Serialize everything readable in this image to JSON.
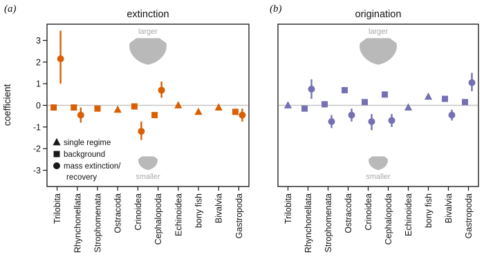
{
  "figure": {
    "panel_a_label": "(a)",
    "panel_b_label": "(b)",
    "ylabel": "coefficient",
    "size_top_label": "larger",
    "size_bottom_label": "smaller"
  },
  "chart_data": [
    {
      "type": "scatter",
      "panel": "a",
      "title": "extinction",
      "color": "#d95f02",
      "xlabel": "",
      "ylabel": "coefficient",
      "ylim": [
        -3.75,
        3.75
      ],
      "yticks": [
        3,
        2,
        1,
        0,
        -1,
        -2,
        -3
      ],
      "grid": false,
      "zero_line": true,
      "show_ytick_labels": true,
      "legend_position": "bottom-left",
      "annotations": {
        "top": "larger",
        "bottom": "smaller"
      },
      "legend": [
        {
          "marker": "triangle",
          "label": "single regime"
        },
        {
          "marker": "square",
          "label": "background"
        },
        {
          "marker": "circle",
          "label": "mass extinction/",
          "label2": "recovery"
        }
      ],
      "categories": [
        "Trilobita",
        "Rhynchonellata",
        "Strophomenata",
        "Ostracoda",
        "Crinoidea",
        "Cephalopoda",
        "Echinoidea",
        "bony fish",
        "Bivalvia",
        "Gastropoda"
      ],
      "points": [
        {
          "category": "Trilobita",
          "marker": "square",
          "y": -0.1
        },
        {
          "category": "Trilobita",
          "marker": "circle",
          "y": 2.15,
          "ci": [
            1.0,
            3.45
          ]
        },
        {
          "category": "Rhynchonellata",
          "marker": "square",
          "y": -0.1
        },
        {
          "category": "Rhynchonellata",
          "marker": "circle",
          "y": -0.45,
          "ci": [
            -0.8,
            -0.1
          ]
        },
        {
          "category": "Strophomenata",
          "marker": "square",
          "y": -0.15
        },
        {
          "category": "Ostracoda",
          "marker": "triangle",
          "y": -0.2
        },
        {
          "category": "Crinoidea",
          "marker": "square",
          "y": -0.05
        },
        {
          "category": "Crinoidea",
          "marker": "circle",
          "y": -1.2,
          "ci": [
            -1.6,
            -0.75
          ]
        },
        {
          "category": "Cephalopoda",
          "marker": "square",
          "y": -0.45
        },
        {
          "category": "Cephalopoda",
          "marker": "circle",
          "y": 0.7,
          "ci": [
            0.35,
            1.1
          ]
        },
        {
          "category": "Echinoidea",
          "marker": "triangle",
          "y": 0.0
        },
        {
          "category": "bony fish",
          "marker": "triangle",
          "y": -0.3
        },
        {
          "category": "Bivalvia",
          "marker": "triangle",
          "y": -0.1
        },
        {
          "category": "Gastropoda",
          "marker": "square",
          "y": -0.3
        },
        {
          "category": "Gastropoda",
          "marker": "circle",
          "y": -0.45,
          "ci": [
            -0.75,
            -0.15
          ]
        }
      ]
    },
    {
      "type": "scatter",
      "panel": "b",
      "title": "origination",
      "color": "#7570b3",
      "xlabel": "",
      "ylabel": "coefficient",
      "ylim": [
        -3.75,
        3.75
      ],
      "yticks": [
        3,
        2,
        1,
        0,
        -1,
        -2,
        -3
      ],
      "grid": false,
      "zero_line": true,
      "show_ytick_labels": false,
      "annotations": {
        "top": "larger",
        "bottom": "smaller"
      },
      "categories": [
        "Trilobita",
        "Rhynchonellata",
        "Strophomenata",
        "Ostracoda",
        "Crinoidea",
        "Cephalopoda",
        "Echinoidea",
        "bony fish",
        "Bivalvia",
        "Gastropoda"
      ],
      "points": [
        {
          "category": "Trilobita",
          "marker": "triangle",
          "y": 0.0
        },
        {
          "category": "Rhynchonellata",
          "marker": "square",
          "y": -0.15
        },
        {
          "category": "Rhynchonellata",
          "marker": "circle",
          "y": 0.75,
          "ci": [
            0.3,
            1.2
          ]
        },
        {
          "category": "Strophomenata",
          "marker": "square",
          "y": 0.05
        },
        {
          "category": "Strophomenata",
          "marker": "circle",
          "y": -0.75,
          "ci": [
            -1.05,
            -0.45
          ]
        },
        {
          "category": "Ostracoda",
          "marker": "square",
          "y": 0.7
        },
        {
          "category": "Ostracoda",
          "marker": "circle",
          "y": -0.45,
          "ci": [
            -0.75,
            -0.15
          ]
        },
        {
          "category": "Crinoidea",
          "marker": "square",
          "y": 0.15
        },
        {
          "category": "Crinoidea",
          "marker": "circle",
          "y": -0.75,
          "ci": [
            -1.15,
            -0.4
          ]
        },
        {
          "category": "Cephalopoda",
          "marker": "square",
          "y": 0.5
        },
        {
          "category": "Cephalopoda",
          "marker": "circle",
          "y": -0.7,
          "ci": [
            -1.0,
            -0.4
          ]
        },
        {
          "category": "Echinoidea",
          "marker": "triangle",
          "y": -0.1
        },
        {
          "category": "bony fish",
          "marker": "triangle",
          "y": 0.4
        },
        {
          "category": "Bivalvia",
          "marker": "square",
          "y": 0.3
        },
        {
          "category": "Bivalvia",
          "marker": "circle",
          "y": -0.45,
          "ci": [
            -0.7,
            -0.2
          ]
        },
        {
          "category": "Gastropoda",
          "marker": "square",
          "y": 0.15
        },
        {
          "category": "Gastropoda",
          "marker": "circle",
          "y": 1.05,
          "ci": [
            0.65,
            1.5
          ]
        }
      ]
    }
  ]
}
